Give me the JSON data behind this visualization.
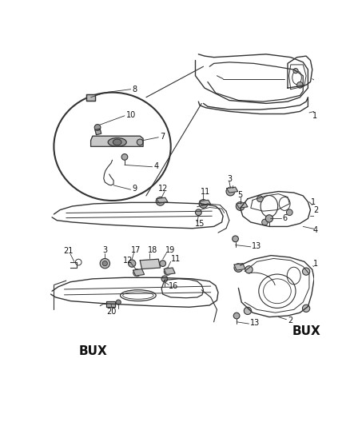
{
  "bg_color": "#ffffff",
  "line_color": "#333333",
  "text_color": "#111111",
  "fig_width": 4.38,
  "fig_height": 5.33,
  "dpi": 100
}
